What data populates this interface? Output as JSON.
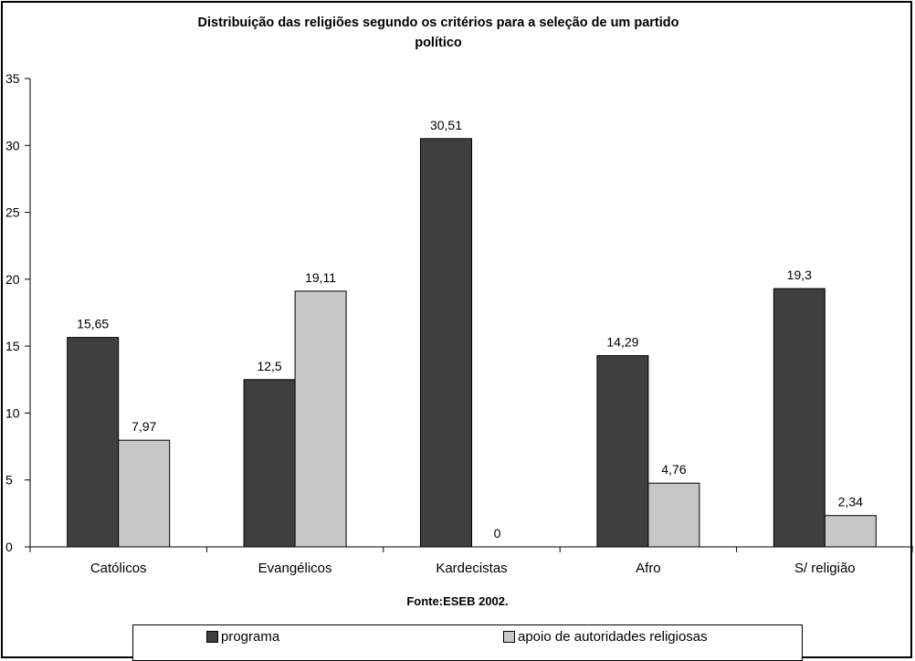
{
  "chart_data": {
    "type": "bar",
    "title": "Distribuição das religiões segundo os critérios para a seleção de um partido político",
    "categories": [
      "Católicos",
      "Evangélicos",
      "Kardecistas",
      "Afro",
      "S/ religião"
    ],
    "series": [
      {
        "name": "programa",
        "values": [
          15.65,
          12.5,
          30.51,
          14.29,
          19.3
        ],
        "labels": [
          "15,65",
          "12,5",
          "30,51",
          "14,29",
          "19,3"
        ],
        "color": "#3f3f3f"
      },
      {
        "name": "apoio de autoridades religiosas",
        "values": [
          7.97,
          19.11,
          0,
          4.76,
          2.34
        ],
        "labels": [
          "7,97",
          "19,11",
          "0",
          "4,76",
          "2,34"
        ],
        "color": "#c8c8c8"
      }
    ],
    "ylim": [
      0,
      35
    ],
    "yticks": [
      "0",
      "5",
      "10",
      "15",
      "20",
      "25",
      "30",
      "35"
    ],
    "xlabel": "",
    "ylabel": "",
    "grid": false,
    "legend": "bottom"
  },
  "source_note": "Fonte:ESEB 2002."
}
